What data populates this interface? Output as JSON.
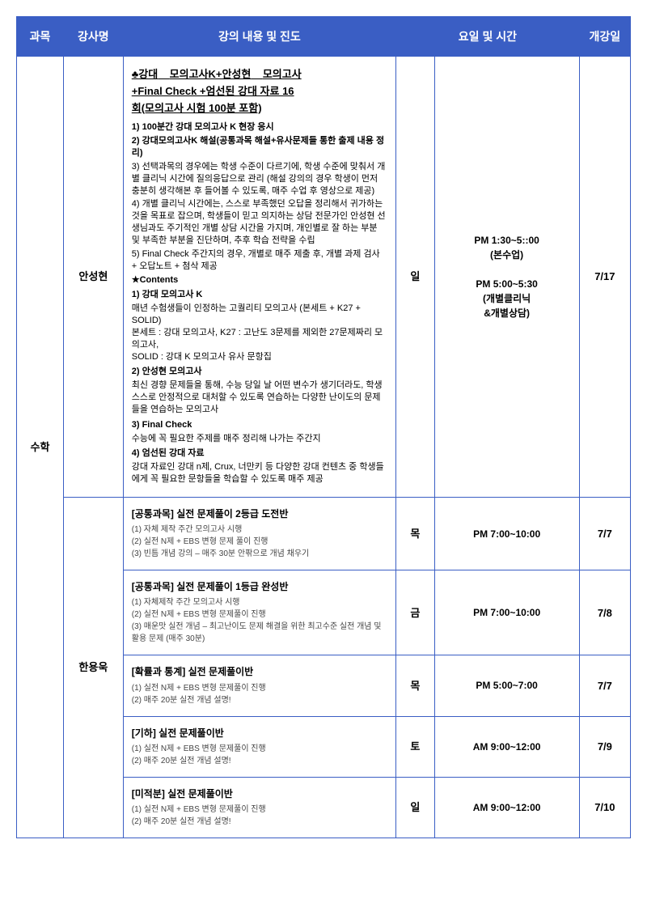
{
  "headers": {
    "subject": "과목",
    "instructor": "강사명",
    "content": "강의 내용 및 진도",
    "daytime": "요일 및 시간",
    "start": "개강일"
  },
  "subject": "수학",
  "rows": [
    {
      "instructor": "안성현",
      "day": "일",
      "time_html": "PM 1:30~5::00\n(본수업)\n\nPM 5:00~5:30\n(개별클리닉\n&개별상담)",
      "start": "7/17",
      "title1": "♣강대",
      "title2": "모의고사K+안성현",
      "title3": "모의고사",
      "titleLine2": "+Final Check +엄선된 강대 자료 16",
      "titleLine3": "회(모의고사 시험 100분 포함)",
      "l1": "1) 100분간 강대 모의고사 K 현장 응시",
      "l2": "2) 강대모의고사K 해설(공통과목 해설+유사문제들 통한 출제 내용 정리)",
      "l3": "3) 선택과목의 경우에는 학생 수준이 다르기에, 학생 수준에 맞춰서 개별 클리닉 시간에 질의응답으로 관리 (해설 강의의 경우 학생이 먼저 충분히 생각해본 후 들어볼 수 있도록, 매주 수업 후 영상으로 제공)",
      "l4": "4) 개별 클리닉 시간에는, 스스로 부족했던 오답을 정리해서 귀가하는 것을 목표로 잡으며, 학생들이 믿고 의지하는 상담 전문가인 안성현 선생님과도 주기적인 개별 상담 시간을 가지며, 개인별로 잘 하는 부분 및 부족한 부분을 진단하며, 추후 학습 전략을 수립",
      "l5": "5) Final Check 주간지의 경우, 개별로 매주 제출 후, 개별 과제 검사 + 오답노트 + 첨삭 제공",
      "star": "★Contents",
      "c1t": "1) 강대 모의고사 K",
      "c1b": " 매년 수험생들이 인정하는 고퀄리티 모의고사 (본세트 + K27 + SOLID)\n본세트 : 강대 모의고사, K27 : 고난도 3문제를 제외한 27문제짜리 모의고사,\nSOLID : 강대 K 모의고사 유사 문항집",
      "c2t": "2) 안성현 모의고사",
      "c2b": " 최신 경향 문제들을 통해, 수능 당일 날 어떤 변수가 생기더라도, 학생 스스로 안정적으로 대처할 수 있도록 연습하는 다양한 난이도의 문제들을 연습하는 모의고사",
      "c3t": "3) Final Check",
      "c3b": " 수능에 꼭 필요한 주제를 매주 정리해 나가는 주간지",
      "c4t": "4) 엄선된 강대 자료",
      "c4b": " 강대 자료인 강대 n제, Crux, 너만키 등 다양한 강대 컨텐츠 중 학생들에게 꼭 필요한 문항들을 학습할 수 있도록 매주 제공"
    },
    {
      "instructor": "한용욱",
      "classes": [
        {
          "title": "[공통과목] 실전 문제풀이 2등급 도전반",
          "sub": "(1) 자체 제작 주간 모의고사 시행\n(2) 실전 N제 + EBS 변형 문제 풀이 진행\n(3) 빈틈 개념 강의 – 매주 30분 안팎으로 개념 채우기",
          "day": "목",
          "time": "PM 7:00~10:00",
          "start": "7/7"
        },
        {
          "title": "[공통과목] 실전 문제풀이 1등급 완성반",
          "sub": "(1) 자체제작 주간 모의고사 시행\n(2) 실전 N제 + EBS 변형 문제풀이 진행\n(3) 매운맛 실전 개념 – 최고난이도 문제 해결을 위한 최고수준 실전 개념 및 활용 문제 (매주 30분)",
          "day": "금",
          "time": "PM 7:00~10:00",
          "start": "7/8"
        },
        {
          "title": "[확률과 통계] 실전 문제풀이반",
          "sub": "(1) 실전 N제 + EBS 변형 문제풀이 진행\n(2) 매주 20분 실전 개념 설명!",
          "day": "목",
          "time": "PM 5:00~7:00",
          "start": "7/7"
        },
        {
          "title": "[기하] 실전 문제풀이반",
          "sub": "(1) 실전 N제 + EBS 변형 문제풀이 진행\n(2) 매주 20분 실전 개념 설명!",
          "day": "토",
          "time": "AM 9:00~12:00",
          "start": "7/9"
        },
        {
          "title": "[미적분] 실전 문제풀이반",
          "sub": "(1) 실전 N제 + EBS 변형 문제풀이 진행\n(2) 매주 20분 실전 개념 설명!",
          "day": "일",
          "time": "AM 9:00~12:00",
          "start": "7/10"
        }
      ]
    }
  ]
}
